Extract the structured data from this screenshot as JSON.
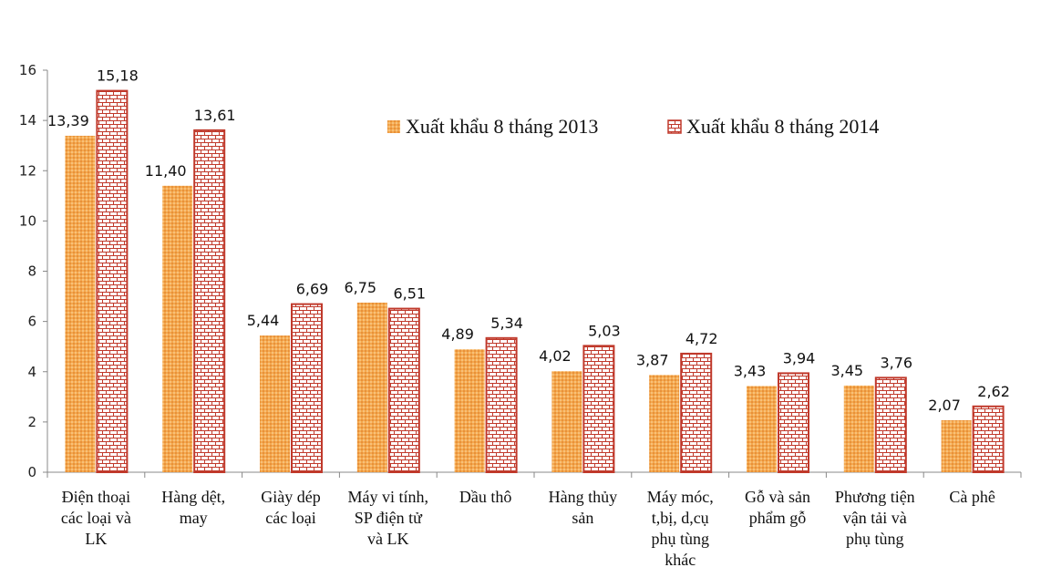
{
  "chart_data": {
    "type": "bar",
    "title": "",
    "xlabel": "",
    "ylabel": "",
    "ylim": [
      0,
      16
    ],
    "yticks": [
      0,
      2,
      4,
      6,
      8,
      10,
      12,
      14,
      16
    ],
    "grid": false,
    "legend_position": "top-right",
    "categories": [
      "Điện thoại các loại và LK",
      "Hàng dệt, may",
      "Giày dép các loại",
      "Máy vi tính, SP điện tử và LK",
      "Dầu thô",
      "Hàng thủy sản",
      "Máy móc, t,bị, d,cụ phụ tùng khác",
      "Gỗ và sản phẩm gỗ",
      "Phương tiện vận tải và phụ tùng",
      "Cà phê"
    ],
    "category_lines": [
      [
        "Điện thoại",
        "các loại và",
        "LK"
      ],
      [
        "Hàng dệt,",
        "may"
      ],
      [
        "Giày dép",
        "các loại"
      ],
      [
        "Máy vi tính,",
        "SP điện tử",
        "và LK"
      ],
      [
        "Dầu thô"
      ],
      [
        "Hàng thủy",
        "sản"
      ],
      [
        "Máy móc,",
        "t,bị, d,cụ",
        "phụ tùng",
        "khác"
      ],
      [
        "Gỗ và sản",
        "phẩm gỗ"
      ],
      [
        "Phương tiện",
        "vận tải và",
        "phụ tùng"
      ],
      [
        "Cà phê"
      ]
    ],
    "series": [
      {
        "name": "Xuất khẩu 8 tháng 2013",
        "values": [
          13.39,
          11.4,
          5.44,
          6.75,
          4.89,
          4.02,
          3.87,
          3.43,
          3.45,
          2.07
        ],
        "labels": [
          "13,39",
          "11,40",
          "5,44",
          "6,75",
          "4,89",
          "4,02",
          "3,87",
          "3,43",
          "3,45",
          "2,07"
        ],
        "color": "#F2A041",
        "pattern": "dots"
      },
      {
        "name": "Xuất khẩu 8 tháng 2014",
        "values": [
          15.18,
          13.61,
          6.69,
          6.51,
          5.34,
          5.03,
          4.72,
          3.94,
          3.76,
          2.62
        ],
        "labels": [
          "15,18",
          "13,61",
          "6,69",
          "6,51",
          "5,34",
          "5,03",
          "4,72",
          "3,94",
          "3,76",
          "2,62"
        ],
        "color": "#C0392B",
        "pattern": "brick"
      }
    ]
  }
}
